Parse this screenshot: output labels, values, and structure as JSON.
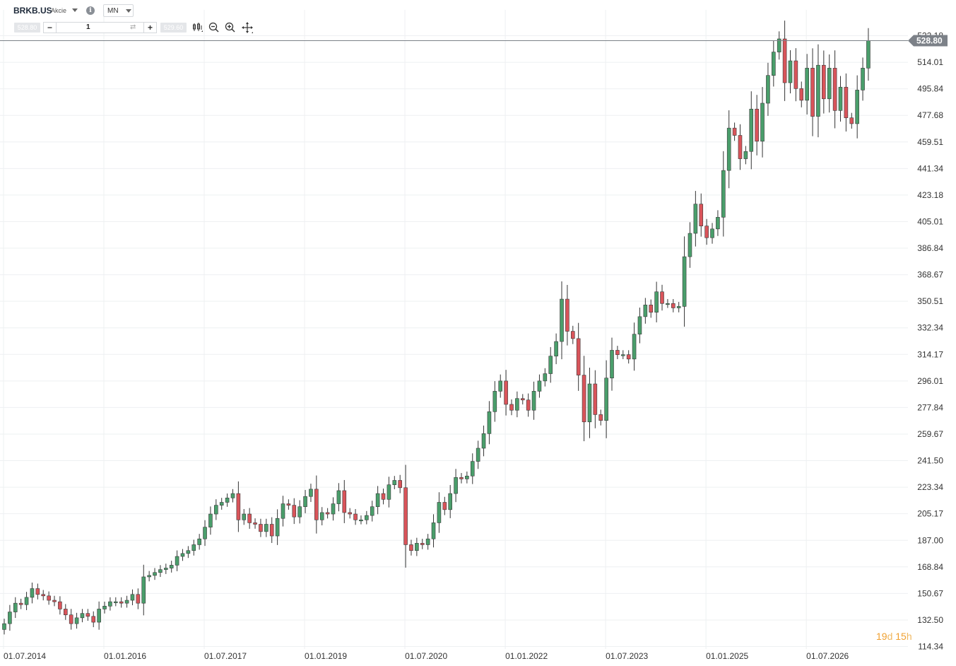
{
  "toolbar": {
    "symbol": "BRKB.US",
    "instrument_type": "Akcie",
    "info_icon": "info-icon",
    "timeframe": "MN",
    "sell_price": "528.80",
    "buy_price": "529.60",
    "quantity": "1",
    "minus_label": "−",
    "plus_label": "+",
    "tools": [
      "candlestick-type-icon",
      "zoom-out-icon",
      "zoom-in-icon",
      "crosshair-icon"
    ]
  },
  "timer": {
    "days": "19",
    "days_unit": "d",
    "hours": "15",
    "hours_unit": "h"
  },
  "colors": {
    "up": "#4a9e6b",
    "down": "#d9545a",
    "grid": "#eef0f2",
    "axis_text": "#333333",
    "price_tag": "#7c8188"
  },
  "chart_data": {
    "type": "candlestick",
    "interval": "monthly",
    "title": "",
    "x_ticks": [
      "01.07.2014",
      "01.01.2016",
      "01.07.2017",
      "01.01.2019",
      "01.07.2020",
      "01.01.2022",
      "01.07.2023",
      "01.01.2025",
      "01.07.2026"
    ],
    "y_ticks": [
      "532.18",
      "514.01",
      "495.84",
      "477.68",
      "459.51",
      "441.34",
      "423.18",
      "405.01",
      "386.84",
      "368.67",
      "350.51",
      "332.34",
      "314.17",
      "296.01",
      "277.84",
      "259.67",
      "241.50",
      "223.34",
      "205.17",
      "187.00",
      "168.84",
      "150.67",
      "132.50",
      "114.34"
    ],
    "ylim": [
      114.34,
      532.18
    ],
    "last_price": "528.80",
    "start": "2014-07",
    "closes": [
      130,
      138,
      144,
      143,
      148,
      154,
      150,
      149,
      146,
      145,
      140,
      136,
      130,
      134,
      137,
      135,
      131,
      140,
      142,
      145,
      145,
      144,
      146,
      150,
      144,
      162,
      163,
      165,
      167,
      168,
      170,
      176,
      178,
      180,
      184,
      188,
      196,
      205,
      211,
      213,
      216,
      219,
      201,
      205,
      199,
      198,
      193,
      198,
      190,
      202,
      212,
      211,
      203,
      210,
      217,
      222,
      201,
      206,
      205,
      212,
      221,
      206,
      205,
      201,
      201,
      204,
      210,
      219,
      215,
      225,
      228,
      223,
      184,
      180,
      185,
      184,
      188,
      199,
      213,
      208,
      219,
      230,
      229,
      231,
      241,
      250,
      260,
      275,
      289,
      296,
      280,
      276,
      284,
      283,
      276,
      289,
      296,
      301,
      313,
      323,
      352,
      330,
      325,
      300,
      268,
      294,
      273,
      269,
      298,
      317,
      314,
      314,
      311,
      328,
      340,
      348,
      343,
      357,
      349,
      349,
      346,
      347,
      381,
      397,
      417,
      402,
      394,
      400,
      408,
      440,
      469,
      464,
      448,
      453,
      482,
      460,
      486,
      505,
      521,
      530,
      500,
      515,
      496,
      488,
      510,
      477,
      512,
      489,
      510,
      481,
      497,
      476,
      472,
      495,
      510,
      528.8
    ]
  }
}
